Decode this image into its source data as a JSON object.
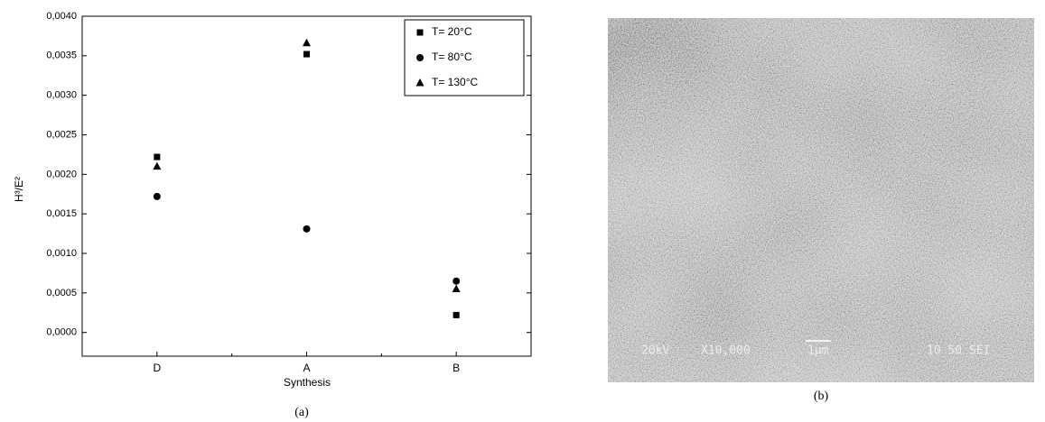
{
  "chart_data": {
    "type": "scatter",
    "caption": "(a)",
    "xlabel": "Synthesis",
    "ylabel": "H³/E²",
    "categories": [
      "D",
      "A",
      "B"
    ],
    "series": [
      {
        "name": "T= 20°C",
        "color": "#000000",
        "marker": "square",
        "values": [
          0.00222,
          0.00352,
          0.00022
        ]
      },
      {
        "name": "T= 80°C",
        "color": "#000000",
        "marker": "circle",
        "values": [
          0.00172,
          0.00131,
          0.00065
        ]
      },
      {
        "name": "T= 130°C",
        "color": "#000000",
        "marker": "triangle",
        "values": [
          0.0021,
          0.00366,
          0.00055
        ]
      }
    ],
    "ylim": [
      -0.0003,
      0.004
    ],
    "yticks": [
      {
        "value": 0,
        "label": "0,0000"
      },
      {
        "value": 0.0005,
        "label": "0,0005"
      },
      {
        "value": 0.001,
        "label": "0,0010"
      },
      {
        "value": 0.0015,
        "label": "0,0015"
      },
      {
        "value": 0.002,
        "label": "0,0020"
      },
      {
        "value": 0.0025,
        "label": "0,0025"
      },
      {
        "value": 0.003,
        "label": "0,0030"
      },
      {
        "value": 0.0035,
        "label": "0,0035"
      },
      {
        "value": 0.004,
        "label": "0,0040"
      }
    ],
    "legend": "upper right"
  },
  "image": {
    "caption": "(b)",
    "labels": [
      "20kV",
      "X10,000",
      "1μm",
      "10 50 SEI"
    ]
  }
}
